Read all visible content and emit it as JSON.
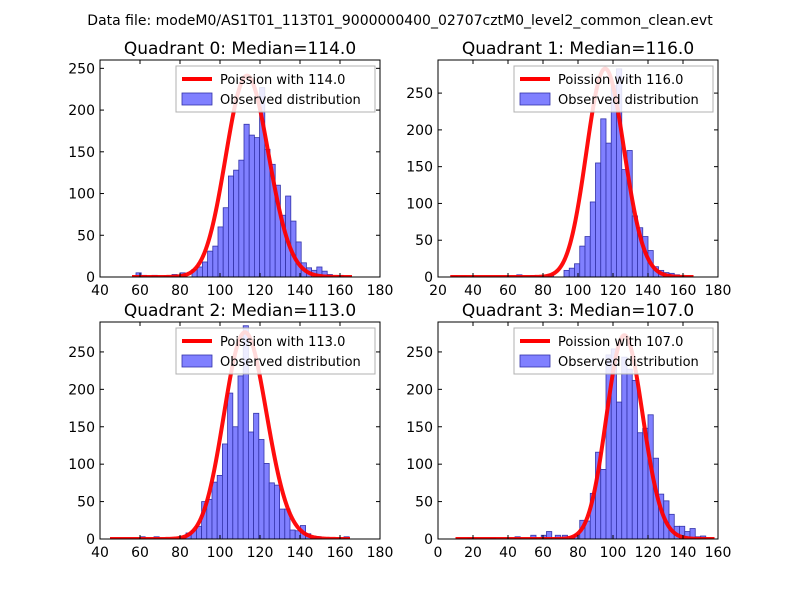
{
  "figure": {
    "suptitle": "Data file: modeM0/AS1T01_113T01_9000000400_02707cztM0_level2_common_clean.evt"
  },
  "colors": {
    "bar_fill": "#8080ff",
    "bar_edge": "#3333aa",
    "curve": "#ff0000",
    "axis": "#000000",
    "legend_edge": "#b0b0b0"
  },
  "chart_data": [
    {
      "type": "bar",
      "title": "Quadrant 0: Median=114.0",
      "curve_label": "Poission with 114.0",
      "hist_label": "Observed distribution",
      "xlim": [
        40,
        180
      ],
      "ylim": [
        0,
        260
      ],
      "xticks": [
        40,
        60,
        80,
        100,
        120,
        140,
        160,
        180
      ],
      "yticks": [
        0,
        50,
        100,
        150,
        200,
        250
      ],
      "bin_width": 2.6,
      "bins": [
        [
          58,
          5
        ],
        [
          60.6,
          2
        ],
        [
          66,
          2
        ],
        [
          72,
          1
        ],
        [
          76,
          3
        ],
        [
          80,
          5
        ],
        [
          86,
          9
        ],
        [
          88.6,
          12
        ],
        [
          91.2,
          18
        ],
        [
          93.8,
          31
        ],
        [
          96.4,
          37
        ],
        [
          99,
          60
        ],
        [
          101.6,
          83
        ],
        [
          104.2,
          121
        ],
        [
          106.8,
          128
        ],
        [
          109.4,
          140
        ],
        [
          112,
          183
        ],
        [
          114.6,
          170
        ],
        [
          117.2,
          167
        ],
        [
          119.8,
          227
        ],
        [
          122.4,
          153
        ],
        [
          125,
          135
        ],
        [
          127.6,
          110
        ],
        [
          130.2,
          74
        ],
        [
          132.8,
          97
        ],
        [
          135.4,
          67
        ],
        [
          138,
          42
        ],
        [
          140.6,
          17
        ],
        [
          143.2,
          11
        ],
        [
          145.8,
          8
        ],
        [
          148.4,
          12
        ],
        [
          151,
          7
        ],
        [
          153.6,
          3
        ],
        [
          159,
          2
        ]
      ],
      "curve": {
        "mean": 114.0,
        "scale": 241,
        "xrange": [
          56,
          166
        ]
      }
    },
    {
      "type": "bar",
      "title": "Quadrant 1: Median=116.0",
      "curve_label": "Poission with 116.0",
      "hist_label": "Observed distribution",
      "xlim": [
        20,
        180
      ],
      "ylim": [
        0,
        295
      ],
      "xticks": [
        20,
        40,
        60,
        80,
        100,
        120,
        140,
        160,
        180
      ],
      "yticks": [
        0,
        50,
        100,
        150,
        200,
        250
      ],
      "bin_width": 3.0,
      "bins": [
        [
          28,
          1
        ],
        [
          33,
          1
        ],
        [
          65,
          3
        ],
        [
          73,
          2
        ],
        [
          77,
          1
        ],
        [
          83,
          3
        ],
        [
          92,
          9
        ],
        [
          95,
          12
        ],
        [
          98,
          18
        ],
        [
          101,
          42
        ],
        [
          104,
          55
        ],
        [
          107,
          102
        ],
        [
          110,
          155
        ],
        [
          113,
          215
        ],
        [
          116,
          182
        ],
        [
          119,
          260
        ],
        [
          122,
          283
        ],
        [
          125,
          146
        ],
        [
          128,
          172
        ],
        [
          131,
          83
        ],
        [
          134,
          67
        ],
        [
          137,
          55
        ],
        [
          140,
          36
        ],
        [
          143,
          14
        ],
        [
          146,
          9
        ],
        [
          149,
          6
        ],
        [
          152,
          5
        ],
        [
          155,
          3
        ],
        [
          158,
          1
        ]
      ],
      "curve": {
        "mean": 116.0,
        "scale": 283,
        "xrange": [
          27,
          166
        ]
      }
    },
    {
      "type": "bar",
      "title": "Quadrant 2: Median=113.0",
      "curve_label": "Poission with 113.0",
      "hist_label": "Observed distribution",
      "xlim": [
        40,
        180
      ],
      "ylim": [
        0,
        290
      ],
      "xticks": [
        40,
        60,
        80,
        100,
        120,
        140,
        160,
        180
      ],
      "yticks": [
        0,
        50,
        100,
        150,
        200,
        250
      ],
      "bin_width": 2.6,
      "bins": [
        [
          60,
          3
        ],
        [
          67,
          3
        ],
        [
          80,
          2
        ],
        [
          83,
          8
        ],
        [
          85.6,
          11
        ],
        [
          88.2,
          17
        ],
        [
          90.8,
          50
        ],
        [
          93.4,
          53
        ],
        [
          96,
          76
        ],
        [
          98.6,
          85
        ],
        [
          101.2,
          127
        ],
        [
          103.8,
          195
        ],
        [
          106.4,
          150
        ],
        [
          109,
          218
        ],
        [
          111.6,
          285
        ],
        [
          114.2,
          143
        ],
        [
          116.8,
          168
        ],
        [
          119.4,
          133
        ],
        [
          122,
          101
        ],
        [
          124.6,
          75
        ],
        [
          127.2,
          72
        ],
        [
          129.8,
          40
        ],
        [
          132.4,
          40
        ],
        [
          135,
          12
        ],
        [
          137.6,
          11
        ],
        [
          140.2,
          18
        ],
        [
          142.8,
          7
        ],
        [
          145.4,
          2
        ],
        [
          148,
          3
        ],
        [
          162,
          3
        ]
      ],
      "curve": {
        "mean": 113.0,
        "scale": 276,
        "xrange": [
          45,
          165
        ]
      }
    },
    {
      "type": "bar",
      "title": "Quadrant 3: Median=107.0",
      "curve_label": "Poission with 107.0",
      "hist_label": "Observed distribution",
      "xlim": [
        0,
        160
      ],
      "ylim": [
        0,
        290
      ],
      "xticks": [
        0,
        20,
        40,
        60,
        80,
        100,
        120,
        140,
        160
      ],
      "yticks": [
        0,
        50,
        100,
        150,
        200,
        250
      ],
      "bin_width": 3.0,
      "bins": [
        [
          17,
          1
        ],
        [
          30,
          1
        ],
        [
          44,
          3
        ],
        [
          53,
          5
        ],
        [
          59,
          5
        ],
        [
          62,
          10
        ],
        [
          67,
          5
        ],
        [
          71,
          5
        ],
        [
          75,
          3
        ],
        [
          78,
          6
        ],
        [
          81,
          25
        ],
        [
          84,
          24
        ],
        [
          87,
          61
        ],
        [
          90,
          116
        ],
        [
          93,
          93
        ],
        [
          96,
          246
        ],
        [
          99,
          254
        ],
        [
          102,
          183
        ],
        [
          105,
          243
        ],
        [
          108,
          227
        ],
        [
          111,
          212
        ],
        [
          114,
          142
        ],
        [
          117,
          148
        ],
        [
          120,
          166
        ],
        [
          123,
          108
        ],
        [
          126,
          60
        ],
        [
          129,
          51
        ],
        [
          132,
          33
        ],
        [
          135,
          17
        ],
        [
          138,
          17
        ],
        [
          141,
          10
        ],
        [
          144,
          14
        ],
        [
          147,
          3
        ],
        [
          150,
          4
        ]
      ],
      "curve": {
        "mean": 107.0,
        "scale": 272,
        "xrange": [
          10,
          158
        ]
      }
    }
  ]
}
